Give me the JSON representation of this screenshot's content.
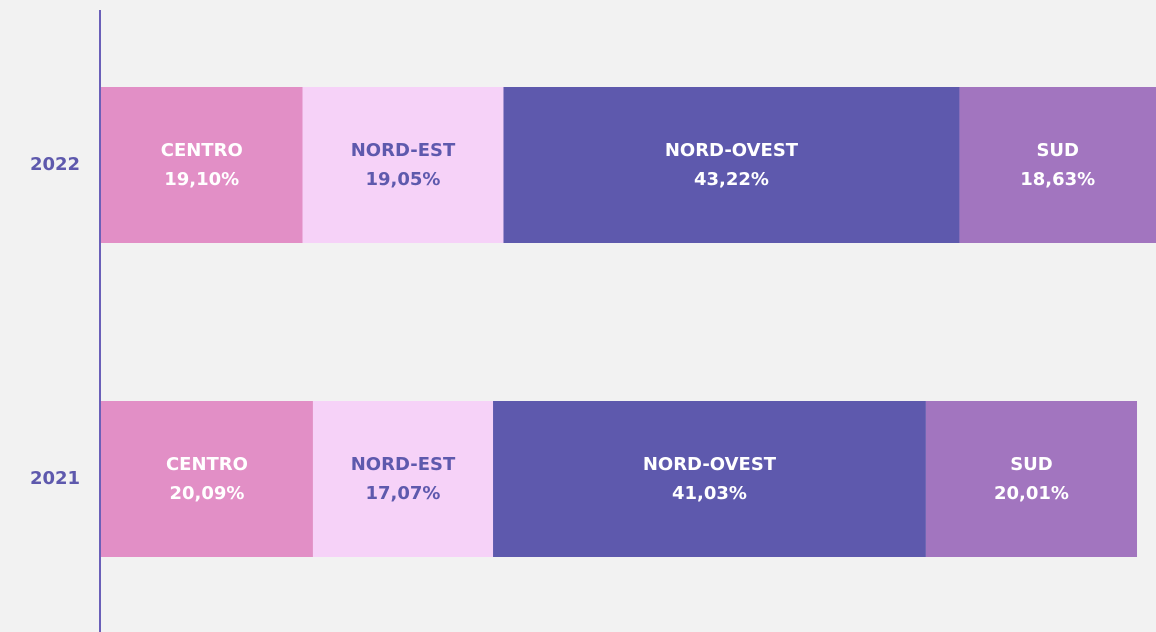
{
  "chart_data": {
    "type": "stacked-bar-horizontal",
    "categories": [
      "2022",
      "2021"
    ],
    "series": [
      {
        "name": "CENTRO",
        "color": "#e28fc6",
        "values": [
          19.1,
          20.09
        ],
        "value_labels": [
          "19,10%",
          "20,09%"
        ]
      },
      {
        "name": "NORD-EST",
        "color": "#f6d2f8",
        "values": [
          19.05,
          17.07
        ],
        "value_labels": [
          "19,05%",
          "17,07%"
        ]
      },
      {
        "name": "NORD-OVEST",
        "color": "#5e59ad",
        "values": [
          43.22,
          41.03
        ],
        "value_labels": [
          "43,22%",
          "41,03%"
        ]
      },
      {
        "name": "SUD",
        "color": "#a275bf",
        "values": [
          18.63,
          20.01
        ],
        "value_labels": [
          "18,63%",
          "20,01%"
        ]
      }
    ],
    "xlim": [
      0,
      100
    ]
  }
}
